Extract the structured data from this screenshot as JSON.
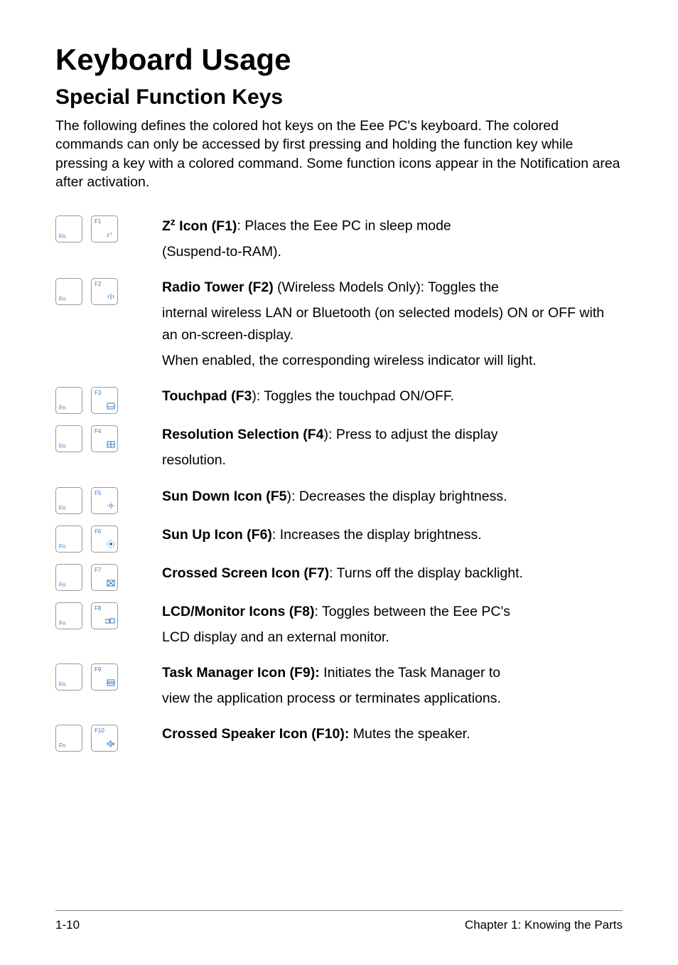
{
  "title": "Keyboard Usage",
  "subtitle": "Special Function Keys",
  "intro": "The following defines the colored hot keys on the Eee PC's keyboard. The colored commands can only be accessed by first pressing and holding the function key while pressing a key with a colored command. Some function icons appear in the Notification area after activation.",
  "fn_label": "Fn",
  "rows": [
    {
      "fkey": "F1",
      "glyph": "z",
      "icon": "zz",
      "label_html": "Z<sup>z</sup> Icon (F1)",
      "sep": ": ",
      "body": "Places the Eee PC in sleep mode",
      "extra": "(Suspend-to-RAM)."
    },
    {
      "fkey": "F2",
      "glyph": "📶",
      "icon": "tower",
      "label_html": "Radio Tower (F2)",
      "sep": " ",
      "body": "(Wireless Models Only): Toggles the",
      "extra": "internal wireless LAN or Bluetooth (on selected models) ON or OFF with an on-screen-display.\nWhen enabled, the corresponding wireless indicator will light."
    },
    {
      "fkey": "F3",
      "glyph": "▭",
      "icon": "touchpad",
      "label_html": "Touchpad (F3",
      "sep": "): ",
      "body": "Toggles the touchpad ON/OFF.",
      "extra": ""
    },
    {
      "fkey": "F4",
      "glyph": "▦",
      "icon": "resolution",
      "label_html": "Resolution Selection (F4",
      "sep": "): ",
      "body": "Press to adjust the display",
      "extra": "resolution."
    },
    {
      "fkey": "F5",
      "glyph": "☼",
      "icon": "sundown",
      "label_html": "Sun Down Icon (F5",
      "sep": "): ",
      "body": "Decreases the display brightness.",
      "extra": ""
    },
    {
      "fkey": "F6",
      "glyph": "☀",
      "icon": "sunup",
      "label_html": "Sun Up Icon (F6)",
      "sep": ": ",
      "body": "Increases the display brightness.",
      "extra": ""
    },
    {
      "fkey": "F7",
      "glyph": "⊠",
      "icon": "crossed-screen",
      "label_html": "Crossed Screen Icon (F7)",
      "sep": ": ",
      "body": "Turns off the display backlight.",
      "extra": ""
    },
    {
      "fkey": "F8",
      "glyph": "▭▭",
      "icon": "lcd-monitor",
      "label_html": "LCD/Monitor Icons (F8)",
      "sep": ": ",
      "body": "Toggles between the Eee PC's",
      "extra": "LCD display and an external monitor."
    },
    {
      "fkey": "F9",
      "glyph": "▦",
      "icon": "task-manager",
      "label_html": "Task Manager Icon (F9):",
      "sep": " ",
      "body": "Initiates the Task Manager to",
      "extra": "view the application process or terminates applications."
    },
    {
      "fkey": "F10",
      "glyph": "🔇",
      "icon": "mute",
      "label_html": "Crossed Speaker Icon (F10):",
      "sep": " ",
      "body": "Mutes the speaker.",
      "extra": ""
    }
  ],
  "footer_left": "1-10",
  "footer_right": "Chapter 1: Knowing the Parts",
  "colors": {
    "key_border": "#999999",
    "key_text": "#3a7ab8",
    "text": "#000000",
    "footer_rule": "#888888"
  },
  "fonts": {
    "h1": 42,
    "h2": 30,
    "body": 19.5,
    "footer": 17,
    "keycap": 8
  }
}
